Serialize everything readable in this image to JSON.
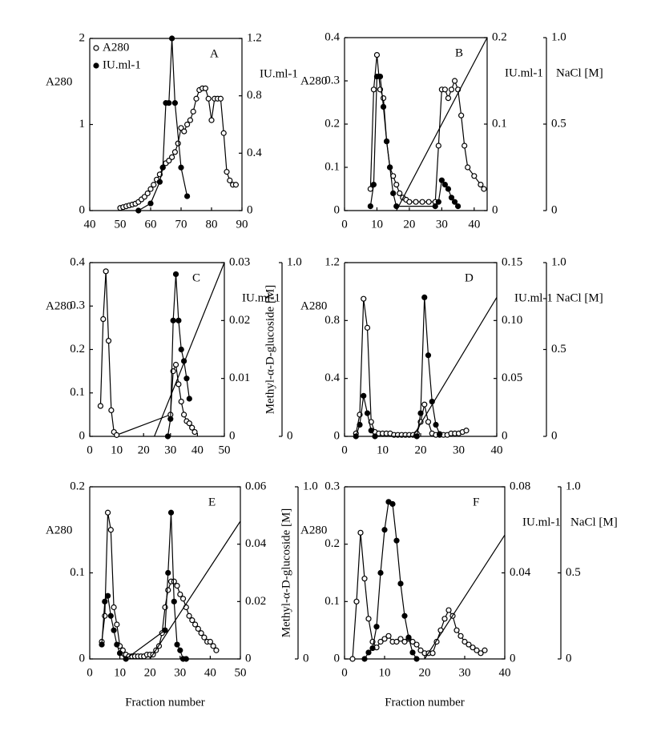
{
  "chart_data": [
    {
      "type": "line",
      "panel": "A",
      "ylabel": "A280",
      "y2label": "IU.ml-1",
      "legend": true,
      "xlim": [
        40,
        90
      ],
      "xticks": [
        40,
        50,
        60,
        70,
        80,
        90
      ],
      "ylim": [
        0,
        2
      ],
      "yticks": [
        0,
        1,
        2
      ],
      "y2lim": [
        0,
        1.2
      ],
      "y2ticks": [
        0,
        0.4,
        0.8,
        1.2
      ],
      "series": [
        {
          "name": "A280",
          "marker": "open",
          "color": "#000000",
          "x": [
            50,
            51,
            52,
            53,
            54,
            55,
            56,
            57,
            58,
            59,
            60,
            61,
            62,
            63,
            64,
            65,
            66,
            67,
            68,
            69,
            70,
            71,
            72,
            73,
            74,
            75,
            76,
            77,
            78,
            79,
            80,
            81,
            82,
            83,
            84,
            85,
            86,
            87,
            88
          ],
          "values": [
            0.03,
            0.04,
            0.05,
            0.06,
            0.07,
            0.08,
            0.1,
            0.13,
            0.16,
            0.2,
            0.25,
            0.3,
            0.36,
            0.42,
            0.5,
            0.55,
            0.58,
            0.62,
            0.68,
            0.78,
            0.96,
            0.92,
            1.0,
            1.05,
            1.15,
            1.3,
            1.4,
            1.42,
            1.42,
            1.3,
            1.05,
            1.3,
            1.3,
            1.3,
            0.9,
            0.45,
            0.35,
            0.3,
            0.3
          ]
        },
        {
          "name": "IU.ml-1",
          "marker": "filled",
          "color": "#000000",
          "axis": "y2",
          "x": [
            56,
            60,
            63,
            64,
            65,
            66,
            67,
            68,
            70,
            72
          ],
          "values": [
            0,
            0.05,
            0.2,
            0.3,
            0.75,
            0.75,
            1.2,
            0.75,
            0.3,
            0.1
          ]
        }
      ]
    },
    {
      "type": "line",
      "panel": "B",
      "ylabel": "A280",
      "y2label": "IU.ml-1",
      "y3label": "NaCl [M]",
      "xlim": [
        0,
        44
      ],
      "xticks": [
        0,
        10,
        20,
        30,
        40
      ],
      "ylim": [
        0,
        0.4
      ],
      "yticks": [
        0,
        0.1,
        0.2,
        0.3,
        0.4
      ],
      "y2lim": [
        0,
        0.2
      ],
      "y2ticks": [
        0,
        0.1,
        0.2
      ],
      "y3lim": [
        0,
        1
      ],
      "y3ticks": [
        0,
        0.5,
        {
          "value": 1,
          "label": "1.0"
        }
      ],
      "series": [
        {
          "marker": "open",
          "color": "#000000",
          "x": [
            8,
            9,
            10,
            11,
            12,
            13,
            14,
            15,
            16,
            17,
            18,
            19,
            20,
            22,
            24,
            26,
            28,
            29,
            30,
            31,
            32,
            33,
            34,
            35,
            36,
            37,
            38,
            40,
            42,
            43
          ],
          "values": [
            0.05,
            0.28,
            0.36,
            0.28,
            0.26,
            0.16,
            0.1,
            0.08,
            0.06,
            0.04,
            0.03,
            0.025,
            0.02,
            0.02,
            0.02,
            0.02,
            0.02,
            0.15,
            0.28,
            0.28,
            0.26,
            0.28,
            0.3,
            0.28,
            0.22,
            0.15,
            0.1,
            0.08,
            0.06,
            0.05
          ]
        },
        {
          "marker": "filled",
          "color": "#000000",
          "axis": "y2",
          "x": [
            8,
            9,
            10,
            11,
            12,
            13,
            14,
            15,
            16,
            28,
            29,
            30,
            31,
            32,
            33,
            34,
            35
          ],
          "values": [
            0.005,
            0.03,
            0.155,
            0.155,
            0.12,
            0.08,
            0.05,
            0.02,
            0.005,
            0.005,
            0.01,
            0.035,
            0.03,
            0.025,
            0.015,
            0.01,
            0.005
          ]
        },
        {
          "marker": "none",
          "color": "#000000",
          "axis": "y3",
          "x": [
            16,
            44
          ],
          "values": [
            0,
            1
          ]
        }
      ]
    },
    {
      "type": "line",
      "panel": "C",
      "ylabel": "A280",
      "y2label": "IU.ml-1",
      "y3label": "Methyl-α-D-glucoside [M]",
      "xlim": [
        0,
        50
      ],
      "xticks": [
        0,
        10,
        20,
        30,
        40,
        50
      ],
      "ylim": [
        0,
        0.4
      ],
      "yticks": [
        0,
        0.1,
        0.2,
        0.3,
        0.4
      ],
      "y2lim": [
        0,
        0.03
      ],
      "y2ticks": [
        0,
        0.01,
        0.02,
        0.03
      ],
      "y3lim": [
        0,
        1
      ],
      "y3ticks": [
        0,
        {
          "value": 1,
          "label": "1.0"
        }
      ],
      "series": [
        {
          "marker": "open",
          "color": "#000000",
          "x": [
            4,
            5,
            6,
            7,
            8,
            9,
            10,
            30,
            31,
            32,
            33,
            34,
            35,
            36,
            37,
            38,
            39
          ],
          "values": [
            0.07,
            0.27,
            0.38,
            0.22,
            0.06,
            0.01,
            0.003,
            0.05,
            0.15,
            0.165,
            0.12,
            0.08,
            0.05,
            0.035,
            0.03,
            0.02,
            0.01
          ]
        },
        {
          "marker": "filled",
          "color": "#000000",
          "axis": "y2",
          "x": [
            29,
            30,
            31,
            32,
            33,
            34,
            35,
            36,
            37
          ],
          "values": [
            0,
            0.003,
            0.02,
            0.028,
            0.02,
            0.015,
            0.013,
            0.01,
            0.0065
          ]
        },
        {
          "marker": "none",
          "color": "#000000",
          "axis": "y3",
          "x": [
            24,
            50
          ],
          "values": [
            0,
            1
          ]
        }
      ]
    },
    {
      "type": "line",
      "panel": "D",
      "ylabel": "A280",
      "y2label": "IU.ml-1",
      "y3label": "NaCl [M]",
      "xlim": [
        0,
        40
      ],
      "xticks": [
        0,
        10,
        20,
        30,
        40
      ],
      "ylim": [
        0,
        1.2
      ],
      "yticks": [
        0,
        0.4,
        0.8,
        1.2
      ],
      "y2lim": [
        0,
        0.15
      ],
      "y2ticks": [
        0,
        0.05,
        {
          "value": 0.1,
          "label": "0.10"
        },
        0.15
      ],
      "y3lim": [
        0,
        1
      ],
      "y3ticks": [
        0,
        0.5,
        {
          "value": 1,
          "label": "1.0"
        }
      ],
      "series": [
        {
          "marker": "open",
          "color": "#000000",
          "x": [
            3,
            4,
            5,
            6,
            7,
            8,
            9,
            10,
            11,
            12,
            13,
            14,
            15,
            16,
            17,
            18,
            19,
            20,
            21,
            22,
            23,
            24,
            25,
            26,
            27,
            28,
            29,
            30,
            31,
            32
          ],
          "values": [
            0.02,
            0.15,
            0.95,
            0.75,
            0.1,
            0.03,
            0.02,
            0.02,
            0.02,
            0.02,
            0.01,
            0.01,
            0.01,
            0.01,
            0.01,
            0.01,
            0.02,
            0.1,
            0.22,
            0.1,
            0.02,
            0.01,
            0.01,
            0.01,
            0.01,
            0.02,
            0.02,
            0.02,
            0.03,
            0.04
          ]
        },
        {
          "marker": "filled",
          "color": "#000000",
          "axis": "y2",
          "x": [
            3,
            4,
            5,
            6,
            7,
            8,
            19,
            20,
            21,
            22,
            23,
            24,
            25
          ],
          "values": [
            0,
            0.01,
            0.035,
            0.02,
            0.005,
            0,
            0,
            0.02,
            0.12,
            0.07,
            0.03,
            0.01,
            0.002
          ]
        },
        {
          "marker": "none",
          "color": "#000000",
          "axis": "y3",
          "x": [
            18,
            40
          ],
          "values": [
            0,
            0.8
          ]
        }
      ]
    },
    {
      "type": "line",
      "panel": "E",
      "ylabel": "A280",
      "y3label": "Methyl-α-D-glucoside [M]",
      "xlabel": "Fraction number",
      "xlim": [
        0,
        50
      ],
      "xticks": [
        0,
        10,
        20,
        30,
        40,
        50
      ],
      "ylim": [
        0,
        0.2
      ],
      "yticks": [
        0,
        0.1,
        0.2
      ],
      "y2lim": [
        0,
        0.06
      ],
      "y2ticks": [
        0,
        0.02,
        0.04,
        0.06
      ],
      "y3lim": [
        0,
        1
      ],
      "y3ticks": [
        0,
        {
          "value": 1,
          "label": "1.0"
        }
      ],
      "series": [
        {
          "marker": "open",
          "color": "#000000",
          "x": [
            4,
            5,
            6,
            7,
            8,
            9,
            10,
            11,
            12,
            13,
            14,
            15,
            16,
            17,
            18,
            19,
            20,
            21,
            22,
            23,
            24,
            25,
            26,
            27,
            28,
            29,
            30,
            31,
            32,
            33,
            34,
            35,
            36,
            37,
            38,
            39,
            40,
            41,
            42
          ],
          "values": [
            0.02,
            0.05,
            0.17,
            0.15,
            0.06,
            0.04,
            0.015,
            0.01,
            0.005,
            0.003,
            0.003,
            0.003,
            0.003,
            0.003,
            0.003,
            0.005,
            0.005,
            0.005,
            0.01,
            0.015,
            0.03,
            0.06,
            0.08,
            0.09,
            0.09,
            0.085,
            0.075,
            0.07,
            0.06,
            0.05,
            0.045,
            0.04,
            0.035,
            0.03,
            0.025,
            0.02,
            0.02,
            0.015,
            0.01
          ]
        },
        {
          "marker": "filled",
          "color": "#000000",
          "axis": "y2",
          "x": [
            4,
            5,
            6,
            7,
            8,
            9,
            10,
            12,
            25,
            26,
            27,
            28,
            29,
            30,
            31,
            32
          ],
          "values": [
            0.005,
            0.02,
            0.022,
            0.015,
            0.01,
            0.005,
            0.002,
            0,
            0.01,
            0.03,
            0.051,
            0.02,
            0.005,
            0.003,
            0,
            0
          ]
        },
        {
          "marker": "none",
          "color": "#000000",
          "axis": "y3",
          "x": [
            20,
            50
          ],
          "values": [
            0,
            0.8
          ]
        }
      ]
    },
    {
      "type": "line",
      "panel": "F",
      "ylabel": "A280",
      "y2label": "IU.ml-1",
      "y3label": "NaCl [M]",
      "xlabel": "Fraction number",
      "xlim": [
        0,
        40
      ],
      "xticks": [
        0,
        10,
        20,
        30,
        40
      ],
      "ylim": [
        0,
        0.3
      ],
      "yticks": [
        0,
        0.1,
        0.2,
        0.3
      ],
      "y2lim": [
        0,
        0.08
      ],
      "y2ticks": [
        0,
        0.04,
        0.08
      ],
      "y3lim": [
        0,
        1
      ],
      "y3ticks": [
        0,
        0.5,
        {
          "value": 1,
          "label": "1.0"
        }
      ],
      "series": [
        {
          "marker": "open",
          "color": "#000000",
          "x": [
            2,
            3,
            4,
            5,
            6,
            7,
            8,
            9,
            10,
            11,
            12,
            13,
            14,
            15,
            16,
            17,
            18,
            19,
            20,
            21,
            22,
            23,
            24,
            25,
            26,
            27,
            28,
            29,
            30,
            31,
            32,
            33,
            34,
            35
          ],
          "values": [
            0,
            0.1,
            0.22,
            0.14,
            0.07,
            0.03,
            0.02,
            0.03,
            0.035,
            0.04,
            0.03,
            0.03,
            0.035,
            0.03,
            0.035,
            0.03,
            0.025,
            0.015,
            0.01,
            0.01,
            0.01,
            0.03,
            0.05,
            0.07,
            0.085,
            0.075,
            0.05,
            0.04,
            0.03,
            0.025,
            0.02,
            0.015,
            0.01,
            0.015
          ]
        },
        {
          "marker": "filled",
          "color": "#000000",
          "axis": "y2",
          "x": [
            5,
            6,
            7,
            8,
            9,
            10,
            11,
            12,
            13,
            14,
            15,
            16,
            17,
            18
          ],
          "values": [
            0,
            0.003,
            0.005,
            0.015,
            0.04,
            0.06,
            0.073,
            0.072,
            0.055,
            0.035,
            0.02,
            0.01,
            0.003,
            0
          ]
        },
        {
          "marker": "none",
          "color": "#000000",
          "axis": "y3",
          "x": [
            20,
            40
          ],
          "values": [
            0,
            0.72
          ]
        }
      ]
    }
  ]
}
